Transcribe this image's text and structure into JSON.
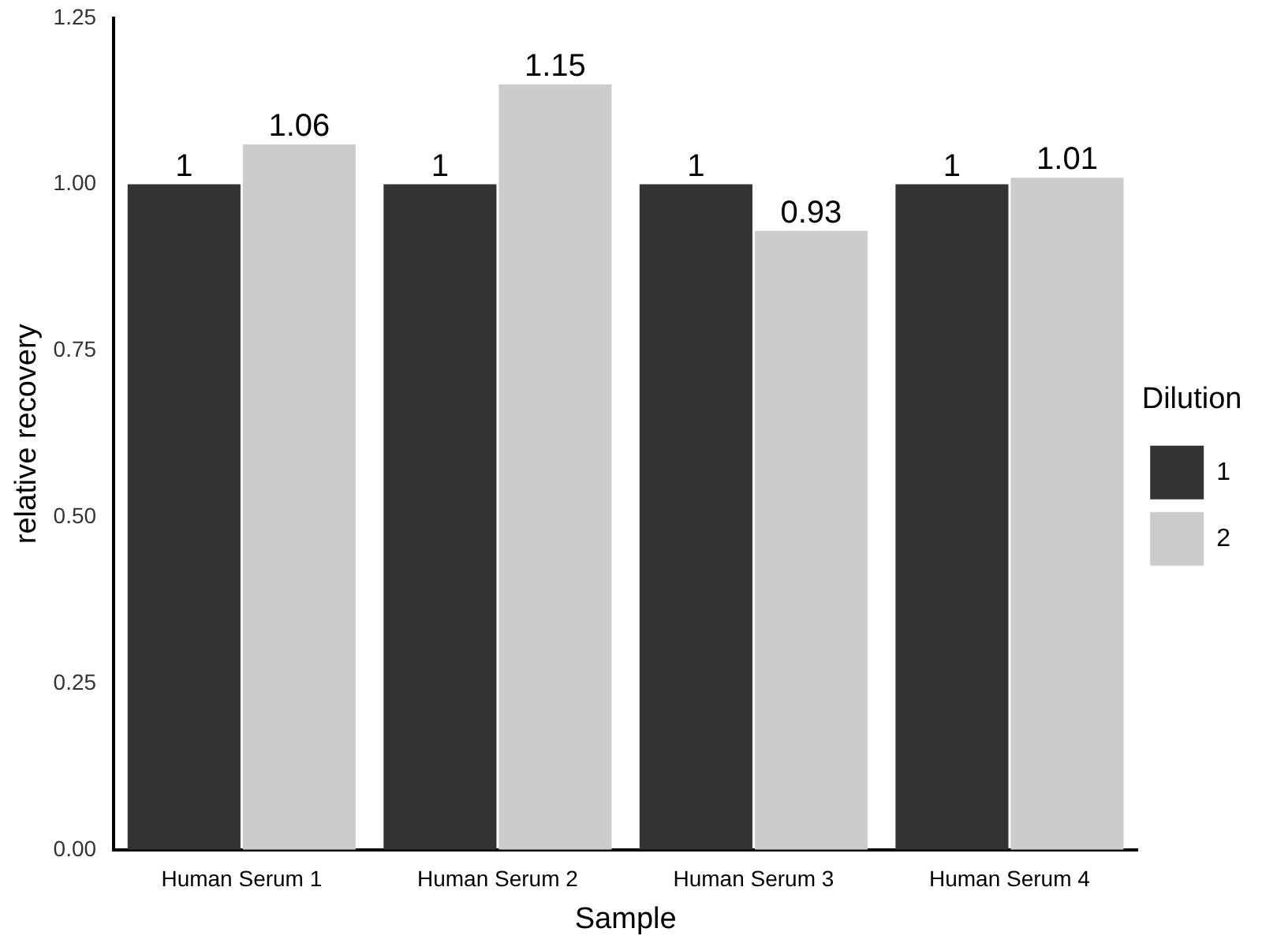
{
  "chart_data": {
    "type": "bar",
    "xlabel": "Sample",
    "ylabel": "relative recovery",
    "legend_title": "Dilution",
    "legend": "right",
    "grid": false,
    "data_labels": true,
    "categories": [
      "Human Serum 1",
      "Human Serum 2",
      "Human Serum 3",
      "Human Serum 4"
    ],
    "series": [
      {
        "name": "1",
        "color": "#333333",
        "values": [
          1,
          1,
          1,
          1
        ]
      },
      {
        "name": "2",
        "color": "#cccccc",
        "values": [
          1.06,
          1.15,
          0.93,
          1.01
        ]
      }
    ],
    "ylim": [
      0,
      1.25
    ],
    "yticks": [
      {
        "value": 0,
        "label": "0.00"
      },
      {
        "value": 0.25,
        "label": "0.25"
      },
      {
        "value": 0.5,
        "label": "0.50"
      },
      {
        "value": 0.75,
        "label": "0.75"
      },
      {
        "value": 1,
        "label": "1.00"
      },
      {
        "value": 1.25,
        "label": "1.25"
      }
    ]
  }
}
